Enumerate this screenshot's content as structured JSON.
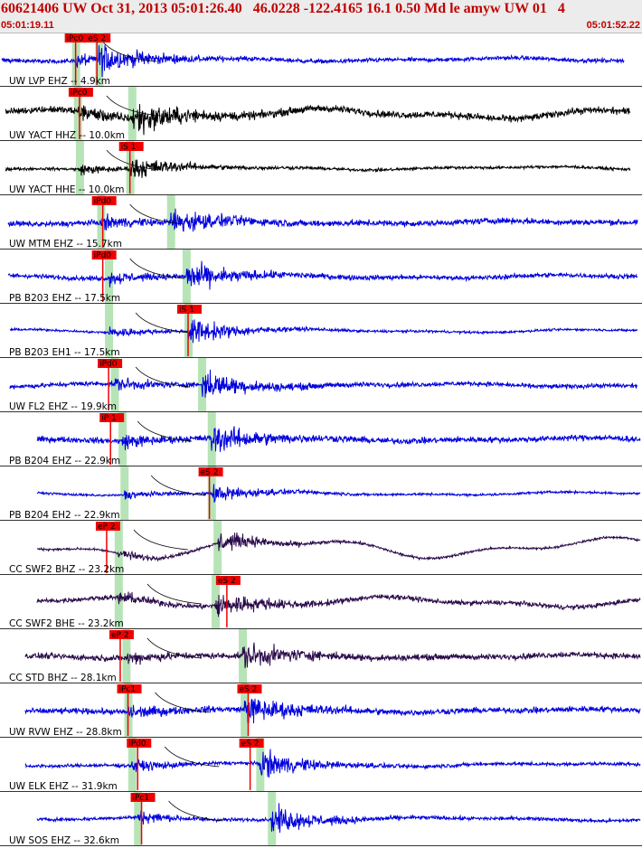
{
  "header": {
    "title": "60621406 UW Oct 31, 2013 05:01:26.40   46.0228 -122.4165 16.1 0.50 Md le amyw UW 01   4",
    "start_time": "05:01:19.11",
    "end_time": "05:01:52.22"
  },
  "colors": {
    "blue_trace": "#0000dd",
    "black_trace": "#000000",
    "purple_trace": "#2a0a4a",
    "pick_box": "#ee0000",
    "arrival_band": "#b7e4b7",
    "panel_border": "#333333"
  },
  "chart_data": {
    "type": "seismogram",
    "time_start": "05:01:19.11",
    "time_end": "05:01:52.22",
    "duration_s": 33.11,
    "channels": [
      {
        "label": "UW LVP EHZ -- 4.9km",
        "color": "blue",
        "p_pick": "iPc0",
        "s_pick": "eS 2",
        "p_t": 3.9,
        "s_t": 5.0,
        "p_band": 3.9,
        "s_band": 5.1,
        "trace_start": 0.1,
        "trace_end": 32.2,
        "noise": 0.07,
        "amp": 0.45
      },
      {
        "label": "UW YACT HHZ -- 10.0km",
        "color": "black",
        "p_pick": "iPc0",
        "s_pick": "",
        "p_t": 4.1,
        "s_t": 6.7,
        "p_band": 4.0,
        "s_band": 6.8,
        "trace_start": 0.3,
        "trace_end": 32.5,
        "noise": 0.12,
        "amp": 0.5,
        "lf": 0.15
      },
      {
        "label": "UW YACT HHE -- 10.0km",
        "color": "black",
        "p_pick": "",
        "s_pick": "iS 1",
        "p_t": 4.1,
        "s_t": 6.7,
        "p_band": 4.1,
        "s_band": 6.7,
        "trace_start": 0.3,
        "trace_end": 32.5,
        "noise": 0.05,
        "amp": 0.35
      },
      {
        "label": "UW MTM EHZ -- 15.7km",
        "color": "blue",
        "p_pick": "iPd0",
        "s_pick": "",
        "p_t": 5.3,
        "s_t": 8.7,
        "p_band": 5.2,
        "s_band": 8.8,
        "trace_start": 0.4,
        "trace_end": 32.9,
        "noise": 0.1,
        "amp": 0.4
      },
      {
        "label": "PB B203 EHZ -- 17.5km",
        "color": "blue",
        "p_pick": "iPd0",
        "s_pick": "",
        "p_t": 5.3,
        "s_t": 9.7,
        "p_band": 5.6,
        "s_band": 9.6,
        "trace_start": 0.4,
        "trace_end": 32.9,
        "noise": 0.08,
        "amp": 0.45
      },
      {
        "label": "PB B203 EH1 -- 17.5km",
        "color": "blue",
        "p_pick": "",
        "s_pick": "iS 1",
        "p_t": 5.6,
        "s_t": 9.7,
        "p_band": 5.6,
        "s_band": 9.7,
        "trace_start": 0.5,
        "trace_end": 32.9,
        "noise": 0.04,
        "amp": 0.45
      },
      {
        "label": "UW FL2 EHZ -- 19.9km",
        "color": "blue",
        "p_pick": "iPd0",
        "s_pick": "",
        "p_t": 5.6,
        "s_t": 10.5,
        "p_band": 5.9,
        "s_band": 10.4,
        "trace_start": 0.5,
        "trace_end": 32.9,
        "noise": 0.08,
        "amp": 0.45
      },
      {
        "label": "PB B204 EHZ -- 22.9km",
        "color": "blue",
        "p_pick": "iP 1",
        "s_pick": "",
        "p_t": 5.7,
        "s_t": 11.0,
        "p_band": 6.3,
        "s_band": 10.9,
        "trace_start": 1.9,
        "trace_end": 33.0,
        "noise": 0.1,
        "amp": 0.45
      },
      {
        "label": "PB B204 EH2 -- 22.9km",
        "color": "blue",
        "p_pick": "",
        "s_pick": "eS 2",
        "p_t": 6.4,
        "s_t": 10.8,
        "p_band": 6.4,
        "s_band": 10.9,
        "trace_start": 1.9,
        "trace_end": 33.0,
        "noise": 0.04,
        "amp": 0.3
      },
      {
        "label": "CC SWF2 BHZ -- 23.2km",
        "color": "purple",
        "p_pick": "eP 2",
        "s_pick": "",
        "p_t": 5.5,
        "s_t": 11.2,
        "p_band": 6.1,
        "s_band": 11.2,
        "trace_start": 1.9,
        "trace_end": 33.0,
        "noise": 0.04,
        "amp": 0.35,
        "lf": 0.3
      },
      {
        "label": "CC SWF2 BHE -- 23.2km",
        "color": "purple",
        "p_pick": "",
        "s_pick": "eS 2",
        "p_t": 6.2,
        "s_t": 11.7,
        "p_band": 6.1,
        "s_band": 11.1,
        "trace_start": 1.9,
        "trace_end": 33.0,
        "noise": 0.08,
        "amp": 0.4,
        "lf": 0.15
      },
      {
        "label": "CC STD BHZ -- 28.1km",
        "color": "purple",
        "p_pick": "eP 2",
        "s_pick": "",
        "p_t": 6.2,
        "s_t": 13.0,
        "p_band": 6.5,
        "s_band": 12.5,
        "trace_start": 1.3,
        "trace_end": 33.0,
        "noise": 0.1,
        "amp": 0.4
      },
      {
        "label": "UW RVW EHZ -- 28.8km",
        "color": "blue",
        "p_pick": "iPc1",
        "s_pick": "eS 2",
        "p_t": 6.6,
        "s_t": 12.8,
        "p_band": 6.6,
        "s_band": 12.6,
        "trace_start": 1.3,
        "trace_end": 33.0,
        "noise": 0.1,
        "amp": 0.45
      },
      {
        "label": "UW ELK EHZ -- 31.9km",
        "color": "blue",
        "p_pick": "iPd0",
        "s_pick": "eS 2",
        "p_t": 7.1,
        "s_t": 12.9,
        "p_band": 6.8,
        "s_band": 13.4,
        "trace_start": 1.3,
        "trace_end": 33.0,
        "noise": 0.06,
        "amp": 0.45
      },
      {
        "label": "UW SOS EHZ -- 32.6km",
        "color": "blue",
        "p_pick": "iPc1",
        "s_pick": "",
        "p_t": 7.3,
        "s_t": 14.0,
        "p_band": 7.1,
        "s_band": 14.0,
        "trace_start": 1.9,
        "trace_end": 33.0,
        "noise": 0.06,
        "amp": 0.45
      }
    ]
  }
}
